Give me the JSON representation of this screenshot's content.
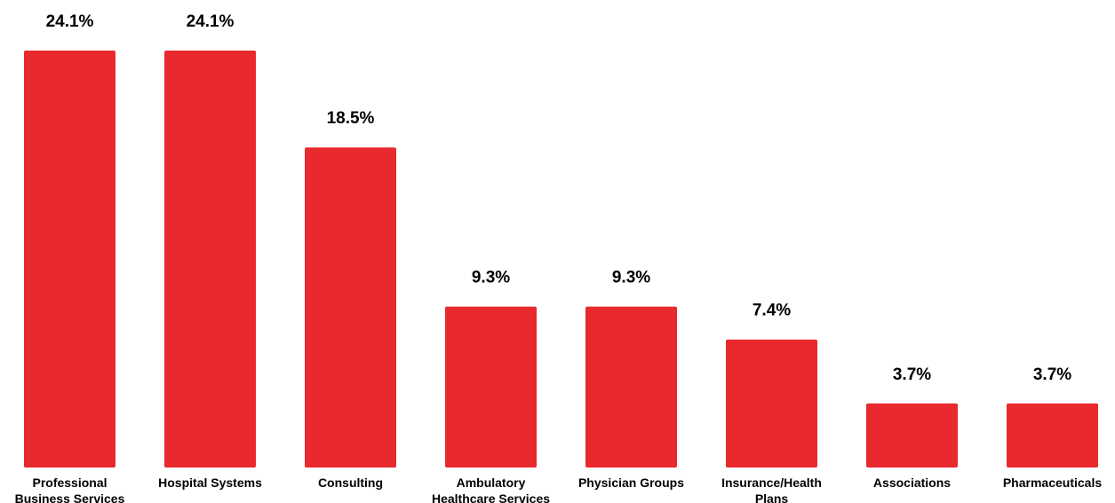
{
  "chart_data": {
    "type": "bar",
    "categories": [
      "Professional Business Services",
      "Hospital Systems",
      "Consulting",
      "Ambulatory Healthcare Services",
      "Physician Groups",
      "Insurance/Health Plans",
      "Associations",
      "Pharmaceuticals"
    ],
    "category_lines": [
      [
        "Professional",
        "Business Services"
      ],
      [
        "Hospital Systems"
      ],
      [
        "Consulting"
      ],
      [
        "Ambulatory",
        "Healthcare Services"
      ],
      [
        "Physician Groups"
      ],
      [
        "Insurance/Health",
        "Plans"
      ],
      [
        "Associations"
      ],
      [
        "Pharmaceuticals"
      ]
    ],
    "values": [
      24.1,
      24.1,
      18.5,
      9.3,
      9.3,
      7.4,
      3.7,
      3.7
    ],
    "value_labels": [
      "24.1%",
      "24.1%",
      "18.5%",
      "9.3%",
      "9.3%",
      "7.4%",
      "3.7%",
      "3.7%"
    ],
    "ylim": [
      0,
      24.1
    ],
    "grid": false,
    "legend": "none",
    "bar_color": "#e8292d"
  }
}
